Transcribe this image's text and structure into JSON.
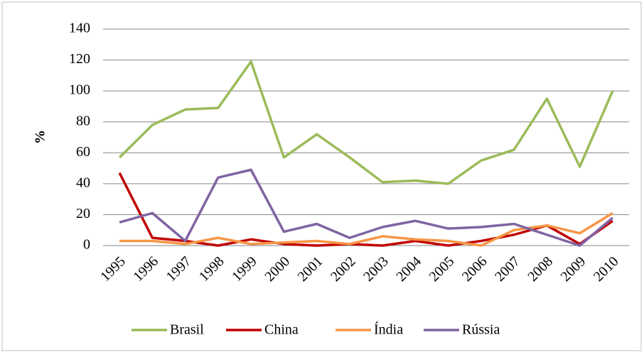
{
  "chart_data": {
    "type": "line",
    "y_label": "%",
    "categories": [
      "1995",
      "1996",
      "1997",
      "1998",
      "1999",
      "2000",
      "2001",
      "2002",
      "2003",
      "2004",
      "2005",
      "2006",
      "2007",
      "2008",
      "2009",
      "2010"
    ],
    "series": [
      {
        "name": "Brasil",
        "color": "#9bbb59",
        "values": [
          57,
          78,
          88,
          89,
          119,
          57,
          72,
          57,
          41,
          42,
          40,
          55,
          62,
          95,
          51,
          100
        ]
      },
      {
        "name": "China",
        "color": "#c00000",
        "values": [
          47,
          5,
          3,
          0,
          4,
          1,
          0,
          1,
          0,
          3,
          0,
          3,
          7,
          13,
          1,
          16
        ]
      },
      {
        "name": "Índia",
        "color": "#f79646",
        "values": [
          3,
          3,
          1,
          5,
          1,
          2,
          3,
          1,
          6,
          4,
          3,
          0,
          10,
          13,
          8,
          21
        ]
      },
      {
        "name": "Rússia",
        "color": "#8064a2",
        "values": [
          15,
          21,
          3,
          44,
          49,
          9,
          14,
          5,
          12,
          16,
          11,
          12,
          14,
          7,
          0,
          18
        ]
      }
    ],
    "ylim": [
      0,
      140
    ],
    "yticks": [
      0,
      20,
      40,
      60,
      80,
      100,
      120,
      140
    ],
    "grid": true
  }
}
